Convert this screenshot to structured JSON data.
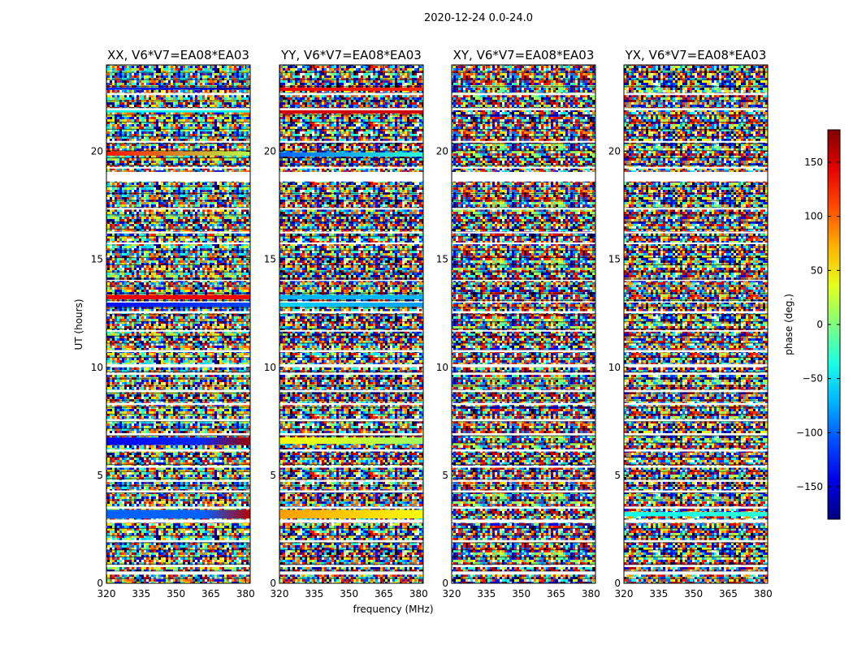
{
  "figure_title": "2020-12-24 0.0-24.0",
  "colors": {
    "flagged": "#ffffff",
    "colormap": "jet",
    "frame": "#000000"
  },
  "chart_data": {
    "type": "heatmap",
    "xlabel": "frequency (MHz)",
    "ylabel": "UT (hours)",
    "xlim": [
      320,
      382
    ],
    "ylim": [
      0,
      24
    ],
    "xticks": [
      320,
      335,
      350,
      365,
      380
    ],
    "yticks": [
      0,
      5,
      10,
      15,
      20
    ],
    "colorbar": {
      "label": "phase (deg.)",
      "range": [
        -180,
        180
      ],
      "ticks": [
        150,
        100,
        50,
        0,
        -50,
        -100,
        -150
      ],
      "tick_labels": [
        "150",
        "100",
        "50",
        "0",
        "−50",
        "−100",
        "−150"
      ]
    },
    "flagged_bands_ut": [
      [
        0.4,
        0.55
      ],
      [
        0.75,
        0.85
      ],
      [
        1.9,
        2.0
      ],
      [
        2.8,
        2.95
      ],
      [
        3.45,
        3.55
      ],
      [
        4.2,
        4.3
      ],
      [
        4.7,
        4.78
      ],
      [
        5.35,
        5.45
      ],
      [
        6.1,
        6.2
      ],
      [
        6.85,
        6.95
      ],
      [
        7.5,
        7.6
      ],
      [
        8.25,
        8.35
      ],
      [
        8.85,
        8.95
      ],
      [
        9.65,
        9.75
      ],
      [
        10.0,
        10.15
      ],
      [
        10.7,
        10.8
      ],
      [
        11.65,
        11.72
      ],
      [
        12.5,
        12.6
      ],
      [
        13.0,
        13.05
      ],
      [
        14.0,
        14.05
      ],
      [
        15.7,
        15.78
      ],
      [
        16.2,
        16.28
      ],
      [
        17.3,
        17.38
      ],
      [
        18.6,
        19.05
      ],
      [
        19.2,
        19.28
      ],
      [
        20.4,
        20.48
      ],
      [
        21.9,
        22.0
      ],
      [
        22.6,
        22.7
      ]
    ],
    "panels": [
      {
        "title": "XX, V6*V7=EA08*EA03",
        "coherent_bands": [
          {
            "ut": [
              3.0,
              3.4
            ],
            "phase_start": -100,
            "phase_end": -100,
            "grad_phase": 160,
            "grad_from_mhz": 362
          },
          {
            "ut": [
              6.4,
              6.75
            ],
            "phase_start": -140,
            "phase_end": -120,
            "grad_phase": 170,
            "grad_from_mhz": 360
          },
          {
            "ut": [
              12.8,
              13.0
            ],
            "phase_start": -130,
            "phase_end": -110
          },
          {
            "ut": [
              13.15,
              13.35
            ],
            "phase_start": 140,
            "phase_end": 140
          },
          {
            "ut": [
              19.8,
              20.0
            ],
            "phase_start": 130,
            "phase_end": 20
          },
          {
            "ut": [
              21.8,
              21.9
            ],
            "phase_start": -40,
            "phase_end": -40
          },
          {
            "ut": [
              22.85,
              22.95
            ],
            "phase_start": -120,
            "phase_end": -170
          }
        ]
      },
      {
        "title": "YY, V6*V7=EA08*EA03",
        "coherent_bands": [
          {
            "ut": [
              3.0,
              3.4
            ],
            "phase_start": 80,
            "phase_end": 45
          },
          {
            "ut": [
              6.45,
              6.75
            ],
            "phase_start": 45,
            "phase_end": 10
          },
          {
            "ut": [
              12.8,
              13.0
            ],
            "phase_start": -60,
            "phase_end": -80
          },
          {
            "ut": [
              13.15,
              13.35
            ],
            "phase_start": -70,
            "phase_end": -70
          },
          {
            "ut": [
              19.75,
              19.95
            ],
            "phase_start": -100,
            "phase_end": -30
          },
          {
            "ut": [
              21.75,
              21.9
            ],
            "phase_start": 150,
            "phase_end": 150
          },
          {
            "ut": [
              22.8,
              22.95
            ],
            "phase_start": 140,
            "phase_end": 120
          }
        ]
      },
      {
        "title": "XY, V6*V7=EA08*EA03",
        "coherent_bands": []
      },
      {
        "title": "YX, V6*V7=EA08*EA03",
        "coherent_bands": [
          {
            "ut": [
              3.1,
              3.3
            ],
            "phase_start": -40,
            "phase_end": -30
          }
        ]
      }
    ]
  }
}
